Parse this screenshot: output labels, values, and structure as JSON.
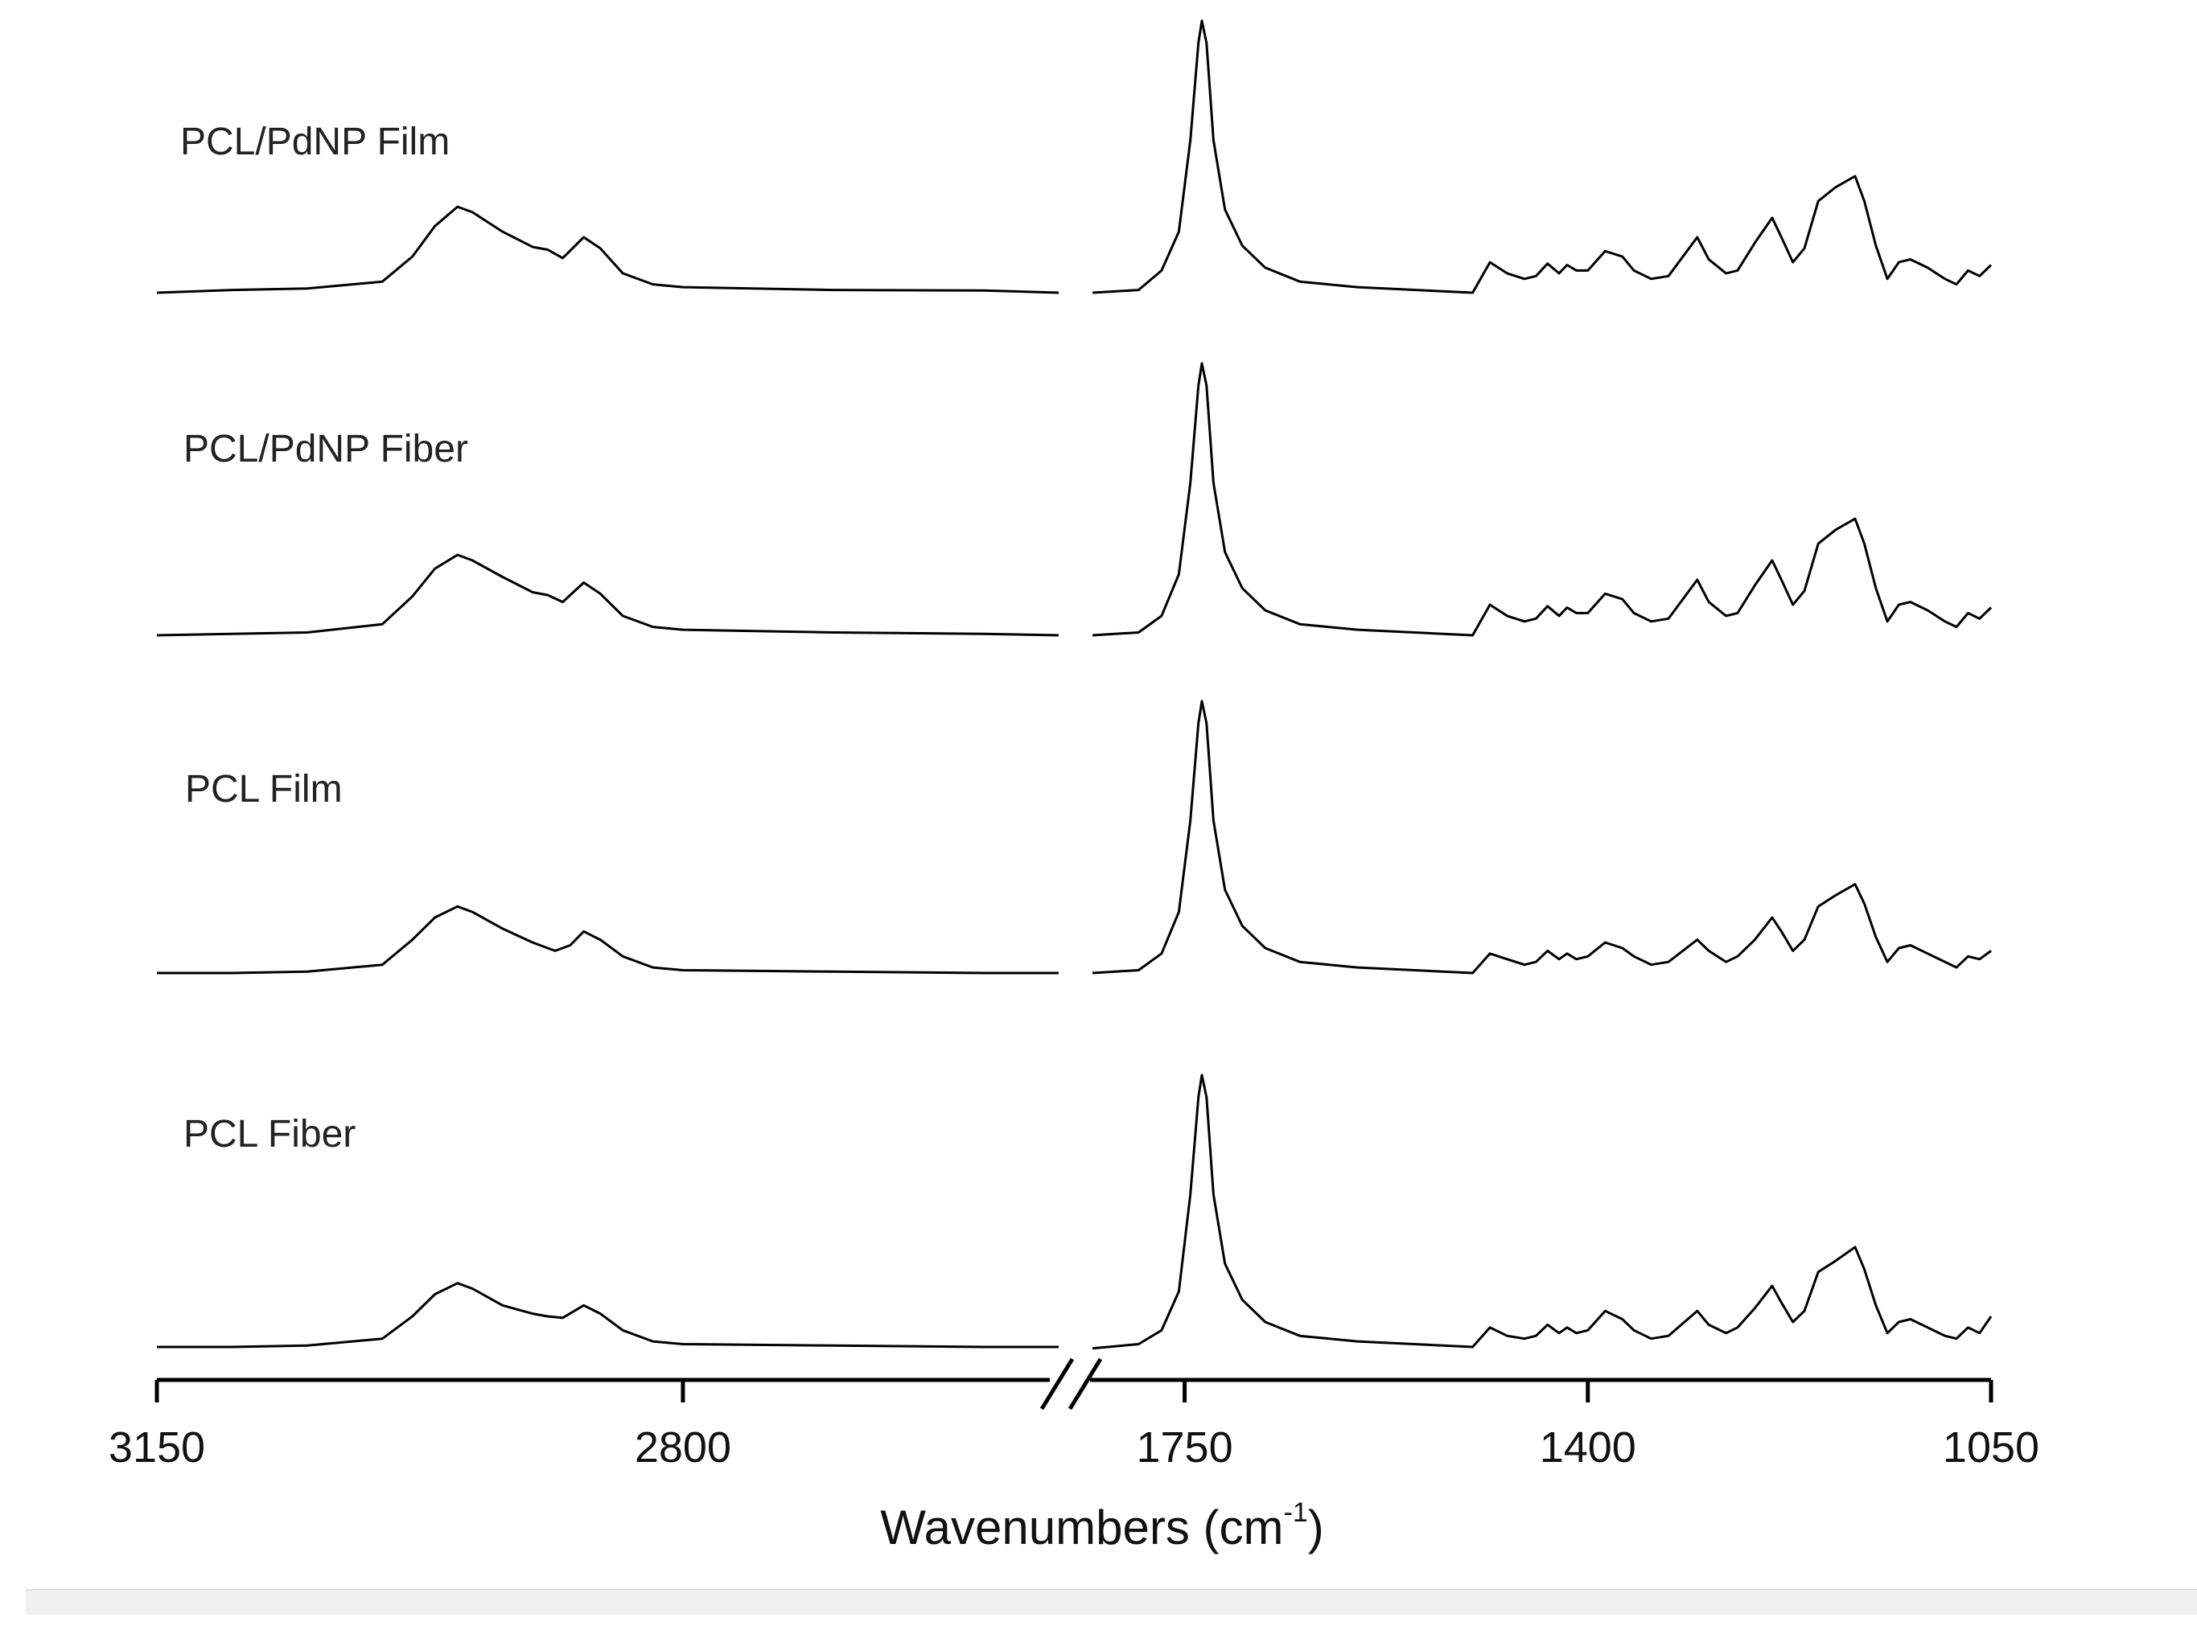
{
  "chart_data": {
    "type": "line",
    "xlabel": "Wavenumbers (cm",
    "xlabel_sup": "-1",
    "xlabel_close": ")",
    "x_axis": {
      "reversed": true,
      "broken": true,
      "segments": [
        {
          "range": [
            3150,
            2550
          ],
          "ticks": [
            3150,
            2800
          ]
        },
        {
          "range": [
            1830,
            1050
          ],
          "ticks": [
            1750,
            1400,
            1050
          ]
        }
      ]
    },
    "tick_labels": [
      "3150",
      "2800",
      "1750",
      "1400",
      "1050"
    ],
    "y_axis_shown": false,
    "grid": false,
    "line_color": "#000000",
    "series": [
      {
        "name": "PCL/PdNP Film",
        "points": [
          [
            3150,
            0.0
          ],
          [
            3100,
            0.01
          ],
          [
            3050,
            0.015
          ],
          [
            3000,
            0.04
          ],
          [
            2980,
            0.13
          ],
          [
            2965,
            0.24
          ],
          [
            2950,
            0.31
          ],
          [
            2940,
            0.29
          ],
          [
            2920,
            0.22
          ],
          [
            2900,
            0.165
          ],
          [
            2890,
            0.155
          ],
          [
            2880,
            0.125
          ],
          [
            2866,
            0.2
          ],
          [
            2855,
            0.16
          ],
          [
            2840,
            0.07
          ],
          [
            2820,
            0.03
          ],
          [
            2800,
            0.02
          ],
          [
            2700,
            0.01
          ],
          [
            2600,
            0.008
          ],
          [
            2550,
            0.0
          ],
          [
            1830,
            0.0
          ],
          [
            1790,
            0.01
          ],
          [
            1770,
            0.08
          ],
          [
            1755,
            0.22
          ],
          [
            1745,
            0.55
          ],
          [
            1738,
            0.9
          ],
          [
            1735,
            0.98
          ],
          [
            1731,
            0.9
          ],
          [
            1725,
            0.55
          ],
          [
            1715,
            0.3
          ],
          [
            1700,
            0.17
          ],
          [
            1680,
            0.09
          ],
          [
            1650,
            0.04
          ],
          [
            1600,
            0.02
          ],
          [
            1500,
            0.0
          ],
          [
            1485,
            0.11
          ],
          [
            1470,
            0.07
          ],
          [
            1455,
            0.05
          ],
          [
            1445,
            0.06
          ],
          [
            1435,
            0.105
          ],
          [
            1425,
            0.07
          ],
          [
            1418,
            0.1
          ],
          [
            1410,
            0.08
          ],
          [
            1400,
            0.08
          ],
          [
            1385,
            0.15
          ],
          [
            1370,
            0.13
          ],
          [
            1360,
            0.08
          ],
          [
            1345,
            0.05
          ],
          [
            1330,
            0.06
          ],
          [
            1305,
            0.2
          ],
          [
            1295,
            0.12
          ],
          [
            1280,
            0.07
          ],
          [
            1270,
            0.08
          ],
          [
            1255,
            0.18
          ],
          [
            1240,
            0.27
          ],
          [
            1232,
            0.2
          ],
          [
            1222,
            0.11
          ],
          [
            1212,
            0.16
          ],
          [
            1200,
            0.33
          ],
          [
            1185,
            0.38
          ],
          [
            1168,
            0.42
          ],
          [
            1160,
            0.33
          ],
          [
            1150,
            0.17
          ],
          [
            1140,
            0.05
          ],
          [
            1130,
            0.11
          ],
          [
            1120,
            0.12
          ],
          [
            1105,
            0.09
          ],
          [
            1090,
            0.05
          ],
          [
            1080,
            0.03
          ],
          [
            1070,
            0.08
          ],
          [
            1060,
            0.06
          ],
          [
            1050,
            0.1
          ]
        ]
      },
      {
        "name": "PCL/PdNP Fiber",
        "points": [
          [
            3150,
            0.0
          ],
          [
            3100,
            0.005
          ],
          [
            3050,
            0.01
          ],
          [
            3000,
            0.04
          ],
          [
            2980,
            0.14
          ],
          [
            2965,
            0.24
          ],
          [
            2950,
            0.29
          ],
          [
            2940,
            0.27
          ],
          [
            2920,
            0.21
          ],
          [
            2900,
            0.155
          ],
          [
            2890,
            0.145
          ],
          [
            2880,
            0.12
          ],
          [
            2866,
            0.19
          ],
          [
            2855,
            0.15
          ],
          [
            2840,
            0.07
          ],
          [
            2820,
            0.03
          ],
          [
            2800,
            0.02
          ],
          [
            2700,
            0.01
          ],
          [
            2600,
            0.005
          ],
          [
            2550,
            0.0
          ],
          [
            1830,
            0.0
          ],
          [
            1790,
            0.01
          ],
          [
            1770,
            0.07
          ],
          [
            1755,
            0.22
          ],
          [
            1745,
            0.55
          ],
          [
            1738,
            0.9
          ],
          [
            1735,
            0.98
          ],
          [
            1731,
            0.9
          ],
          [
            1725,
            0.55
          ],
          [
            1715,
            0.3
          ],
          [
            1700,
            0.17
          ],
          [
            1680,
            0.09
          ],
          [
            1650,
            0.04
          ],
          [
            1600,
            0.02
          ],
          [
            1500,
            0.0
          ],
          [
            1485,
            0.11
          ],
          [
            1470,
            0.07
          ],
          [
            1455,
            0.05
          ],
          [
            1445,
            0.06
          ],
          [
            1435,
            0.105
          ],
          [
            1425,
            0.07
          ],
          [
            1418,
            0.1
          ],
          [
            1410,
            0.08
          ],
          [
            1400,
            0.08
          ],
          [
            1385,
            0.15
          ],
          [
            1370,
            0.13
          ],
          [
            1360,
            0.08
          ],
          [
            1345,
            0.05
          ],
          [
            1330,
            0.06
          ],
          [
            1305,
            0.2
          ],
          [
            1295,
            0.12
          ],
          [
            1280,
            0.07
          ],
          [
            1270,
            0.08
          ],
          [
            1255,
            0.18
          ],
          [
            1240,
            0.27
          ],
          [
            1232,
            0.2
          ],
          [
            1222,
            0.11
          ],
          [
            1212,
            0.16
          ],
          [
            1200,
            0.33
          ],
          [
            1185,
            0.38
          ],
          [
            1168,
            0.42
          ],
          [
            1160,
            0.33
          ],
          [
            1150,
            0.17
          ],
          [
            1140,
            0.05
          ],
          [
            1130,
            0.11
          ],
          [
            1120,
            0.12
          ],
          [
            1105,
            0.09
          ],
          [
            1090,
            0.05
          ],
          [
            1080,
            0.03
          ],
          [
            1070,
            0.08
          ],
          [
            1060,
            0.06
          ],
          [
            1050,
            0.1
          ]
        ]
      },
      {
        "name": "PCL Film",
        "points": [
          [
            3150,
            0.0
          ],
          [
            3100,
            0.0
          ],
          [
            3050,
            0.005
          ],
          [
            3000,
            0.03
          ],
          [
            2980,
            0.12
          ],
          [
            2965,
            0.2
          ],
          [
            2950,
            0.24
          ],
          [
            2940,
            0.22
          ],
          [
            2920,
            0.16
          ],
          [
            2900,
            0.11
          ],
          [
            2890,
            0.09
          ],
          [
            2885,
            0.08
          ],
          [
            2875,
            0.1
          ],
          [
            2866,
            0.15
          ],
          [
            2855,
            0.12
          ],
          [
            2840,
            0.06
          ],
          [
            2820,
            0.02
          ],
          [
            2800,
            0.01
          ],
          [
            2700,
            0.005
          ],
          [
            2600,
            0.0
          ],
          [
            2550,
            0.0
          ],
          [
            1830,
            0.0
          ],
          [
            1790,
            0.01
          ],
          [
            1770,
            0.07
          ],
          [
            1755,
            0.22
          ],
          [
            1745,
            0.55
          ],
          [
            1738,
            0.9
          ],
          [
            1735,
            0.98
          ],
          [
            1731,
            0.9
          ],
          [
            1725,
            0.55
          ],
          [
            1715,
            0.3
          ],
          [
            1700,
            0.17
          ],
          [
            1680,
            0.09
          ],
          [
            1650,
            0.04
          ],
          [
            1600,
            0.02
          ],
          [
            1500,
            0.0
          ],
          [
            1485,
            0.07
          ],
          [
            1470,
            0.05
          ],
          [
            1455,
            0.03
          ],
          [
            1445,
            0.04
          ],
          [
            1435,
            0.08
          ],
          [
            1425,
            0.05
          ],
          [
            1418,
            0.07
          ],
          [
            1410,
            0.05
          ],
          [
            1400,
            0.06
          ],
          [
            1385,
            0.11
          ],
          [
            1370,
            0.09
          ],
          [
            1360,
            0.06
          ],
          [
            1345,
            0.03
          ],
          [
            1330,
            0.04
          ],
          [
            1305,
            0.12
          ],
          [
            1295,
            0.08
          ],
          [
            1280,
            0.04
          ],
          [
            1270,
            0.06
          ],
          [
            1255,
            0.12
          ],
          [
            1240,
            0.2
          ],
          [
            1232,
            0.15
          ],
          [
            1222,
            0.08
          ],
          [
            1212,
            0.12
          ],
          [
            1200,
            0.24
          ],
          [
            1185,
            0.28
          ],
          [
            1168,
            0.32
          ],
          [
            1160,
            0.25
          ],
          [
            1150,
            0.13
          ],
          [
            1140,
            0.04
          ],
          [
            1130,
            0.09
          ],
          [
            1120,
            0.1
          ],
          [
            1105,
            0.07
          ],
          [
            1090,
            0.04
          ],
          [
            1080,
            0.02
          ],
          [
            1070,
            0.06
          ],
          [
            1060,
            0.05
          ],
          [
            1050,
            0.08
          ]
        ]
      },
      {
        "name": "PCL Fiber",
        "points": [
          [
            3150,
            0.0
          ],
          [
            3100,
            0.0
          ],
          [
            3050,
            0.005
          ],
          [
            3000,
            0.03
          ],
          [
            2980,
            0.11
          ],
          [
            2965,
            0.19
          ],
          [
            2950,
            0.23
          ],
          [
            2940,
            0.21
          ],
          [
            2920,
            0.15
          ],
          [
            2900,
            0.12
          ],
          [
            2890,
            0.11
          ],
          [
            2880,
            0.105
          ],
          [
            2866,
            0.15
          ],
          [
            2855,
            0.12
          ],
          [
            2840,
            0.06
          ],
          [
            2820,
            0.02
          ],
          [
            2800,
            0.01
          ],
          [
            2700,
            0.005
          ],
          [
            2600,
            0.0
          ],
          [
            2550,
            0.0
          ],
          [
            1830,
            -0.005
          ],
          [
            1790,
            0.01
          ],
          [
            1770,
            0.06
          ],
          [
            1755,
            0.2
          ],
          [
            1745,
            0.55
          ],
          [
            1738,
            0.9
          ],
          [
            1735,
            0.98
          ],
          [
            1731,
            0.9
          ],
          [
            1725,
            0.55
          ],
          [
            1715,
            0.3
          ],
          [
            1700,
            0.17
          ],
          [
            1680,
            0.09
          ],
          [
            1650,
            0.04
          ],
          [
            1600,
            0.02
          ],
          [
            1500,
            0.0
          ],
          [
            1485,
            0.07
          ],
          [
            1470,
            0.04
          ],
          [
            1455,
            0.03
          ],
          [
            1445,
            0.04
          ],
          [
            1435,
            0.08
          ],
          [
            1425,
            0.05
          ],
          [
            1418,
            0.07
          ],
          [
            1410,
            0.05
          ],
          [
            1400,
            0.06
          ],
          [
            1385,
            0.13
          ],
          [
            1370,
            0.1
          ],
          [
            1360,
            0.06
          ],
          [
            1345,
            0.03
          ],
          [
            1330,
            0.04
          ],
          [
            1305,
            0.13
          ],
          [
            1295,
            0.08
          ],
          [
            1280,
            0.05
          ],
          [
            1270,
            0.07
          ],
          [
            1255,
            0.14
          ],
          [
            1240,
            0.22
          ],
          [
            1232,
            0.16
          ],
          [
            1222,
            0.09
          ],
          [
            1212,
            0.13
          ],
          [
            1200,
            0.27
          ],
          [
            1185,
            0.31
          ],
          [
            1168,
            0.36
          ],
          [
            1160,
            0.28
          ],
          [
            1150,
            0.15
          ],
          [
            1140,
            0.05
          ],
          [
            1130,
            0.09
          ],
          [
            1120,
            0.1
          ],
          [
            1105,
            0.07
          ],
          [
            1090,
            0.04
          ],
          [
            1080,
            0.03
          ],
          [
            1070,
            0.07
          ],
          [
            1060,
            0.05
          ],
          [
            1050,
            0.11
          ]
        ]
      }
    ]
  }
}
